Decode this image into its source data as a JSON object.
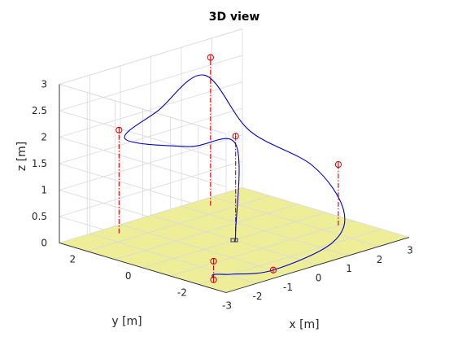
{
  "chart_data": {
    "type": "line3d",
    "title": "3D view",
    "xlabel": "x [m]",
    "ylabel": "y [m]",
    "zlabel": "z [m]",
    "xlim": [
      -3,
      3
    ],
    "ylim": [
      -3,
      3
    ],
    "zlim": [
      0,
      3
    ],
    "xticks": [
      "-3",
      "-2",
      "-1",
      "0",
      "1",
      "2",
      "3"
    ],
    "yticks": [
      "-2",
      "0",
      "2"
    ],
    "zticks": [
      "0",
      "0.5",
      "1",
      "1.5",
      "2",
      "2.5",
      "3"
    ],
    "grid": true,
    "colors": {
      "trajectory": "#0000cc",
      "waypoint": "#cc0000",
      "ground": "#eeee99"
    },
    "waypoints": [
      {
        "x": -1.5,
        "y": 2.5,
        "z": 1.95
      },
      {
        "x": 1.5,
        "y": 2.5,
        "z": 2.8
      },
      {
        "x": 2.5,
        "y": -1.0,
        "z": 1.15
      },
      {
        "x": -1.0,
        "y": -2.5,
        "z": 0.0
      },
      {
        "x": -2.5,
        "y": -2.0,
        "z": 0.35
      },
      {
        "x": -2.5,
        "y": -2.0,
        "z": 0.0
      },
      {
        "x": 0.5,
        "y": 0.5,
        "z": 1.8
      }
    ],
    "trajectory": [
      {
        "x": 0.0,
        "y": 0.0,
        "z": 0.0
      },
      {
        "x": 0.5,
        "y": 0.5,
        "z": 0.0
      },
      {
        "x": 0.5,
        "y": 0.5,
        "z": 1.65
      },
      {
        "x": -0.4,
        "y": 1.2,
        "z": 1.65
      },
      {
        "x": -1.3,
        "y": 2.5,
        "z": 1.75
      },
      {
        "x": -0.2,
        "y": 2.5,
        "z": 2.1
      },
      {
        "x": 1.3,
        "y": 2.5,
        "z": 2.5
      },
      {
        "x": 1.6,
        "y": 1.2,
        "z": 1.6
      },
      {
        "x": 2.3,
        "y": -0.3,
        "z": 1.05
      },
      {
        "x": 2.4,
        "y": -1.3,
        "z": 0.35
      },
      {
        "x": 1.2,
        "y": -2.2,
        "z": 0.08
      },
      {
        "x": -1.0,
        "y": -2.5,
        "z": 0.0
      },
      {
        "x": -1.9,
        "y": -2.0,
        "z": 0.0
      },
      {
        "x": -2.5,
        "y": -2.0,
        "z": 0.1
      },
      {
        "x": -2.5,
        "y": -2.0,
        "z": 0.02
      }
    ]
  }
}
